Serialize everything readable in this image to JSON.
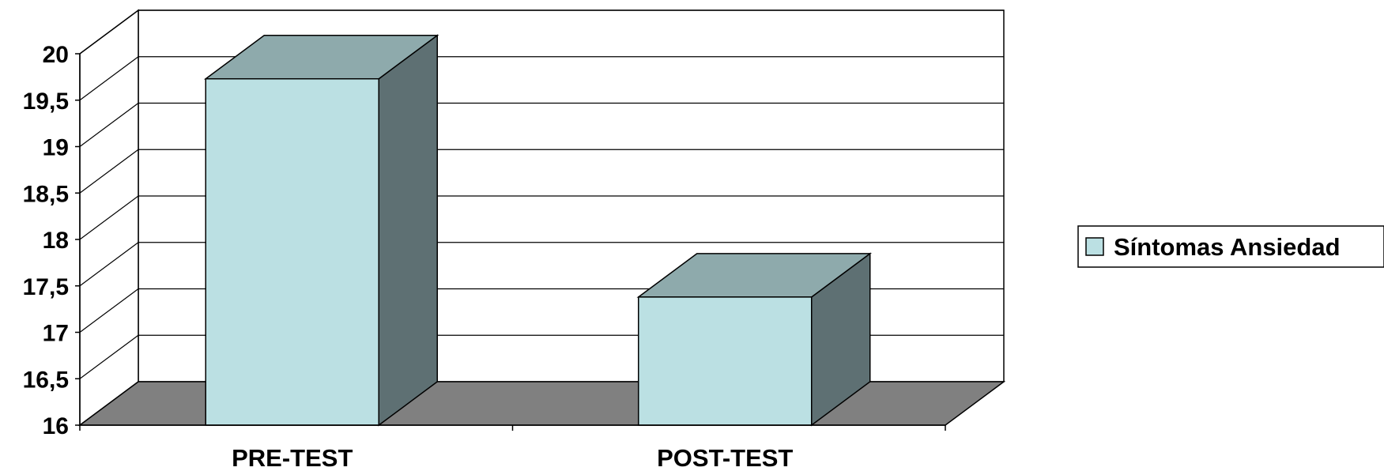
{
  "chart_data": {
    "type": "bar",
    "categories": [
      "PRE-TEST",
      "POST-TEST"
    ],
    "series": [
      {
        "name": "Síntomas Ansiedad",
        "values": [
          19.73,
          17.38
        ]
      }
    ],
    "ylim": [
      16,
      20
    ],
    "ytick_step": 0.5,
    "ytick_labels": [
      "16",
      "16,5",
      "17",
      "17,5",
      "18",
      "18,5",
      "19",
      "19,5",
      "20"
    ],
    "grid": true,
    "style": "3d",
    "legend": "right",
    "colors": {
      "bar_front": "#bbe0e3",
      "bar_top": "#8eaaac",
      "bar_side": "#5e7073",
      "floor": "#808080",
      "legend_swatch": "#bbe0e3"
    }
  }
}
